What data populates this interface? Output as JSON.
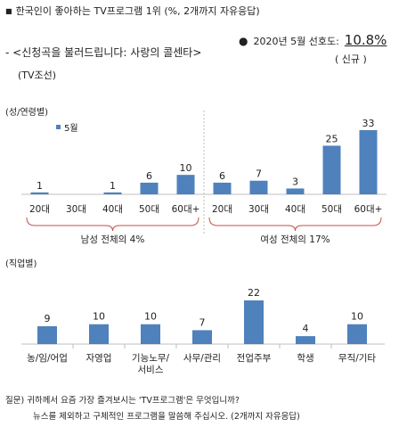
{
  "header": {
    "title": "한국인이 좋아하는 TV프로그램 1위 (%, 2개까지 자유응답)",
    "survey_label": "2020년 5월 선호도:",
    "survey_value": "10.8%",
    "survey_sub": "( 신규 )",
    "program_name": "<신청곡을 불러드립니다: 사랑의 콜센타>",
    "program_channel": "(TV조선)"
  },
  "sections": {
    "gender_age": "(성/연령별)",
    "occupation": "(직업별)"
  },
  "footer": {
    "question_line1": "질문) 귀하께서 요즘 가장 즐겨보시는 'TV프로그램'은 무엇입니까?",
    "question_line2": "뉴스를 제외하고 구체적인 프로그램을 말씀해 주십시오. (2개까지 자유응답)"
  },
  "colors": {
    "bar": "#4f81bd",
    "axis": "#bfbfbf",
    "brace": "#c0504d"
  },
  "chart_data": [
    {
      "type": "bar",
      "legend": [
        "5월"
      ],
      "legend_position": "top-left",
      "categories": [
        "20대",
        "30대",
        "40대",
        "50대",
        "60대+",
        "20대",
        "30대",
        "40대",
        "50대",
        "60대+"
      ],
      "values": [
        1,
        0,
        1,
        6,
        10,
        6,
        7,
        3,
        25,
        33
      ],
      "value_labels": [
        "1",
        "",
        "1",
        "6",
        "10",
        "6",
        "7",
        "3",
        "25",
        "33"
      ],
      "groups": [
        {
          "label": "남성 전체의 4%",
          "from": 0,
          "to": 4
        },
        {
          "label": "여성 전체의 17%",
          "from": 5,
          "to": 9
        }
      ],
      "ylim": [
        0,
        33
      ]
    },
    {
      "type": "bar",
      "categories": [
        "농/임/어업",
        "자영업",
        "기능노무/\n서비스",
        "사무/관리",
        "전업주부",
        "학생",
        "무직/기타"
      ],
      "category_lines": [
        [
          "농/임/어업"
        ],
        [
          "자영업"
        ],
        [
          "기능노무/",
          "서비스"
        ],
        [
          "사무/관리"
        ],
        [
          "전업주부"
        ],
        [
          "학생"
        ],
        [
          "무직/기타"
        ]
      ],
      "values": [
        9,
        10,
        10,
        7,
        22,
        4,
        10
      ],
      "value_labels": [
        "9",
        "10",
        "10",
        "7",
        "22",
        "4",
        "10"
      ],
      "ylim": [
        0,
        22
      ]
    }
  ]
}
